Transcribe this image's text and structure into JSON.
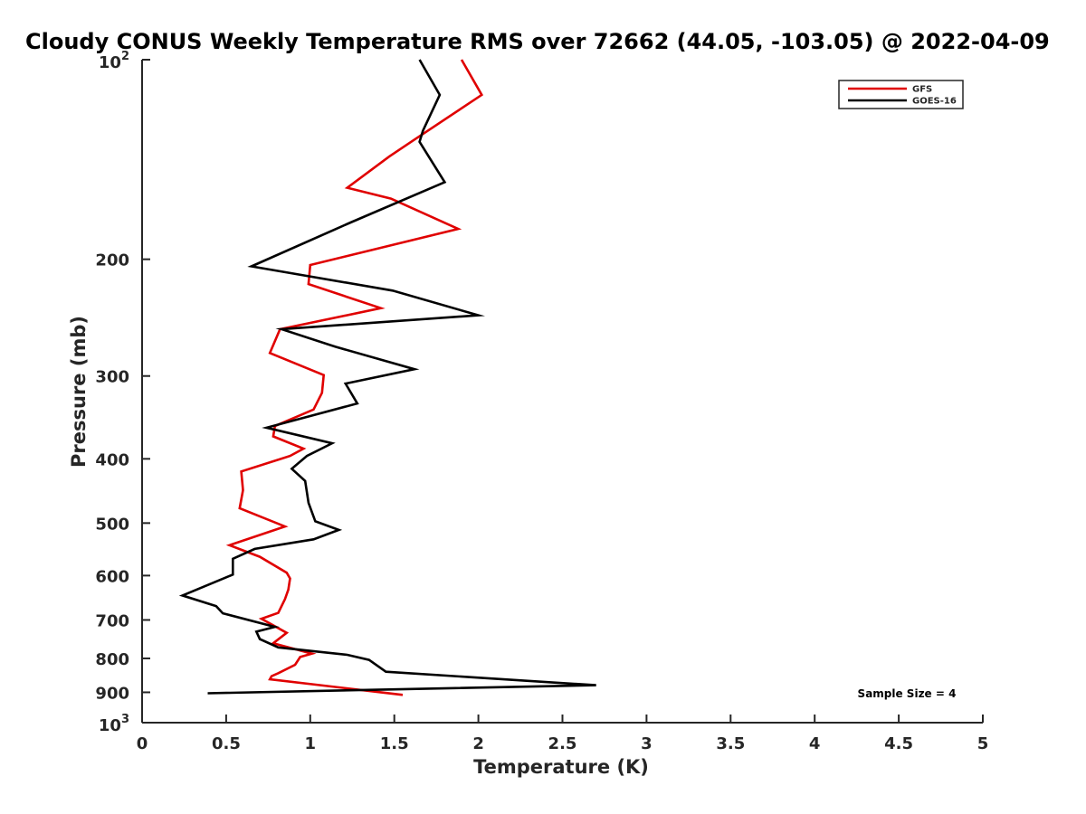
{
  "chart_data": {
    "type": "line",
    "title": "Cloudy CONUS Weekly Temperature RMS over 72662 (44.05, -103.05) @ 2022-04-09",
    "xlabel": "Temperature (K)",
    "ylabel": "Pressure (mb)",
    "xlim": [
      0,
      5
    ],
    "ylim": [
      100,
      1000
    ],
    "y_scale": "log",
    "y_reversed": true,
    "grid": false,
    "legend_position": "top-right",
    "x_ticks": [
      0,
      0.5,
      1,
      1.5,
      2,
      2.5,
      3,
      3.5,
      4,
      4.5,
      5
    ],
    "x_tick_labels": [
      "0",
      "0.5",
      "1",
      "1.5",
      "2",
      "2.5",
      "3",
      "3.5",
      "4",
      "4.5",
      "5"
    ],
    "y_ticks": [
      {
        "value": 100,
        "base": "10",
        "exp": "2",
        "label": ""
      },
      {
        "value": 200,
        "label": "200"
      },
      {
        "value": 300,
        "label": "300"
      },
      {
        "value": 400,
        "label": "400"
      },
      {
        "value": 500,
        "label": "500"
      },
      {
        "value": 600,
        "label": "600"
      },
      {
        "value": 700,
        "label": "700"
      },
      {
        "value": 800,
        "label": "800"
      },
      {
        "value": 900,
        "label": "900"
      },
      {
        "value": 1000,
        "base": "10",
        "exp": "3",
        "label": ""
      }
    ],
    "series": [
      {
        "name": "GFS",
        "color": "#e00000",
        "x": [
          1.9,
          2.02,
          1.6,
          1.47,
          1.22,
          1.48,
          1.88,
          1.0,
          0.99,
          1.42,
          0.82,
          0.76,
          1.08,
          1.07,
          1.02,
          0.79,
          0.78,
          0.96,
          0.88,
          0.59,
          0.6,
          0.58,
          0.85,
          0.52,
          0.7,
          0.86,
          0.88,
          0.87,
          0.85,
          0.81,
          0.71,
          0.86,
          0.78,
          1.01,
          0.94,
          0.91,
          0.81,
          0.77,
          0.76,
          1.55
        ],
        "y": [
          100,
          113,
          133,
          140,
          156,
          162,
          180,
          204,
          218,
          237,
          255,
          277,
          299,
          318,
          337,
          357,
          370,
          386,
          396,
          418,
          446,
          475,
          506,
          540,
          562,
          594,
          606,
          630,
          651,
          683,
          697,
          732,
          759,
          787,
          796,
          818,
          842,
          851,
          860,
          908
        ]
      },
      {
        "name": "GOES-16",
        "color": "#000000",
        "x": [
          1.65,
          1.77,
          1.67,
          1.65,
          1.8,
          1.24,
          0.65,
          1.49,
          2.0,
          0.83,
          1.15,
          1.62,
          1.21,
          1.28,
          0.74,
          1.13,
          0.98,
          0.89,
          0.97,
          0.99,
          1.03,
          1.17,
          1.02,
          0.67,
          0.54,
          0.54,
          0.24,
          0.44,
          0.48,
          0.79,
          0.68,
          0.7,
          0.81,
          1.22,
          1.35,
          1.45,
          2.7,
          0.39
        ],
        "y": [
          100,
          113,
          128,
          133,
          153,
          176,
          205,
          223,
          243,
          255,
          271,
          293,
          308,
          330,
          359,
          379,
          396,
          414,
          432,
          466,
          497,
          512,
          529,
          547,
          566,
          598,
          643,
          667,
          684,
          717,
          729,
          748,
          770,
          790,
          804,
          838,
          878,
          903
        ]
      }
    ],
    "annotations": [
      {
        "text": "Sample Size = 4",
        "position": "bottom-right"
      }
    ]
  }
}
